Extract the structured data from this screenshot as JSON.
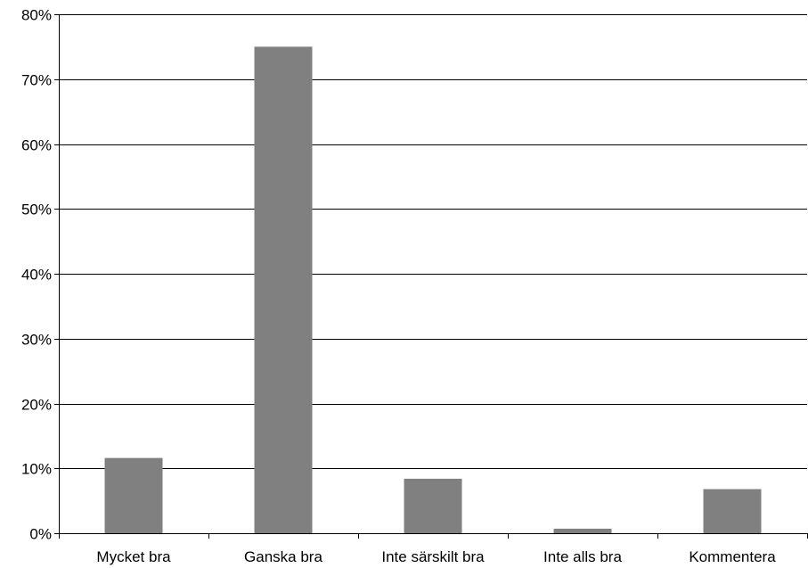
{
  "chart_data": {
    "type": "bar",
    "categories": [
      "Mycket bra",
      "Ganska bra",
      "Inte särskilt bra",
      "Inte alls bra",
      "Kommentera"
    ],
    "values": [
      11.6,
      75.0,
      8.4,
      0.7,
      6.8
    ],
    "ylim": [
      0,
      80
    ],
    "yticks": [
      0,
      10,
      20,
      30,
      40,
      50,
      60,
      70,
      80
    ],
    "ytick_labels": [
      "0%",
      "10%",
      "20%",
      "30%",
      "40%",
      "50%",
      "60%",
      "70%",
      "80%"
    ],
    "unit": "%",
    "grid": true,
    "legend": "none",
    "title": "",
    "xlabel": "",
    "ylabel": "",
    "bar_color": "#808080",
    "grid_color": "#000000"
  }
}
